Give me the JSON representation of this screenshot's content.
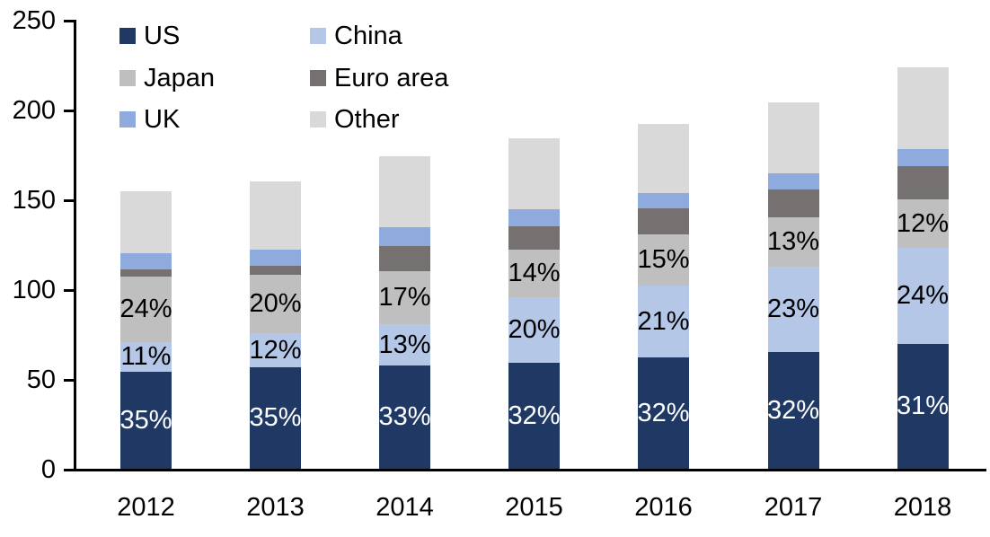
{
  "chart_data": {
    "type": "bar",
    "stacked": true,
    "title": "",
    "xlabel": "",
    "ylabel": "",
    "categories": [
      "2012",
      "2013",
      "2014",
      "2015",
      "2016",
      "2017",
      "2018"
    ],
    "y_axis": {
      "min": 0,
      "max": 250,
      "tick_interval": 50,
      "tick_labels": [
        "0",
        "50",
        "100",
        "150",
        "200",
        "250"
      ]
    },
    "legend": {
      "position": "top-left",
      "columns": 2,
      "entries": [
        "US",
        "China",
        "Japan",
        "Euro area",
        "UK",
        "Other"
      ]
    },
    "grid": false,
    "series": [
      {
        "name": "US",
        "color": "#1f3864",
        "label_color": "#ffffff",
        "values": [
          54,
          56.5,
          57.5,
          59,
          62,
          65,
          69.5
        ],
        "labels": [
          "35%",
          "35%",
          "33%",
          "32%",
          "32%",
          "32%",
          "31%"
        ]
      },
      {
        "name": "China",
        "color": "#b4c7e7",
        "label_color": "#000000",
        "values": [
          16.5,
          19,
          23,
          36.5,
          40,
          47.5,
          53.5
        ],
        "labels": [
          "11%",
          "12%",
          "13%",
          "20%",
          "21%",
          "23%",
          "24%"
        ]
      },
      {
        "name": "Japan",
        "color": "#bfbfbf",
        "label_color": "#000000",
        "values": [
          36.5,
          32.5,
          29.5,
          26.5,
          28.5,
          27.5,
          27
        ],
        "labels": [
          "24%",
          "20%",
          "17%",
          "14%",
          "15%",
          "13%",
          "12%"
        ]
      },
      {
        "name": "Euro area",
        "color": "#767171",
        "label_color": "#000000",
        "values": [
          4,
          5,
          14,
          13,
          14.5,
          15.5,
          18.5
        ],
        "labels": []
      },
      {
        "name": "UK",
        "color": "#8faadc",
        "label_color": "#000000",
        "values": [
          9,
          9,
          10.5,
          9.5,
          8.5,
          9,
          9.5
        ],
        "labels": []
      },
      {
        "name": "Other",
        "color": "#d9d9d9",
        "label_color": "#000000",
        "values": [
          34.5,
          38,
          39.5,
          39.5,
          38.5,
          39.5,
          45.5
        ],
        "labels": []
      }
    ],
    "totals": [
      154.5,
      160,
      174,
      184,
      192,
      204,
      223.5
    ]
  }
}
